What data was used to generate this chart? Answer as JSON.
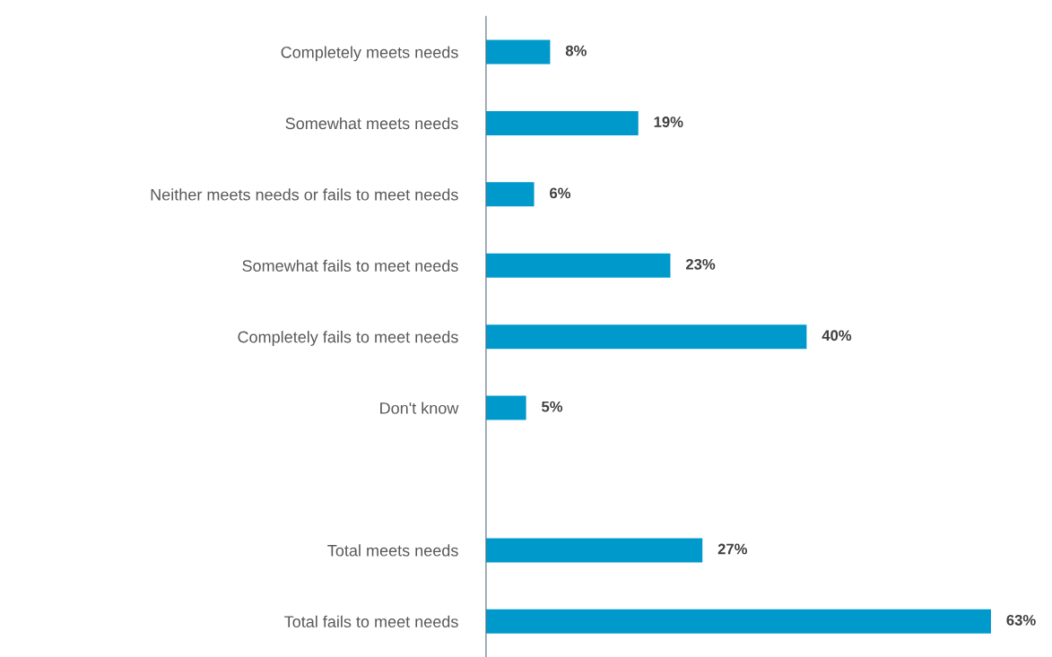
{
  "chart_data": {
    "type": "bar",
    "orientation": "horizontal",
    "categories": [
      "Completely meets needs",
      "Somewhat meets needs",
      "Neither meets needs or fails to meet needs",
      "Somewhat fails to meet needs",
      "Completely fails to meet needs",
      "Don't know",
      null,
      "Total meets needs",
      "Total fails to meet needs"
    ],
    "values": [
      8,
      19,
      6,
      23,
      40,
      5,
      null,
      27,
      63
    ],
    "value_labels": [
      "8%",
      "19%",
      "6%",
      "23%",
      "40%",
      "5%",
      null,
      "27%",
      "63%"
    ],
    "color": "#0099cc",
    "grid": false,
    "legend": false,
    "tick_labels": "y"
  }
}
